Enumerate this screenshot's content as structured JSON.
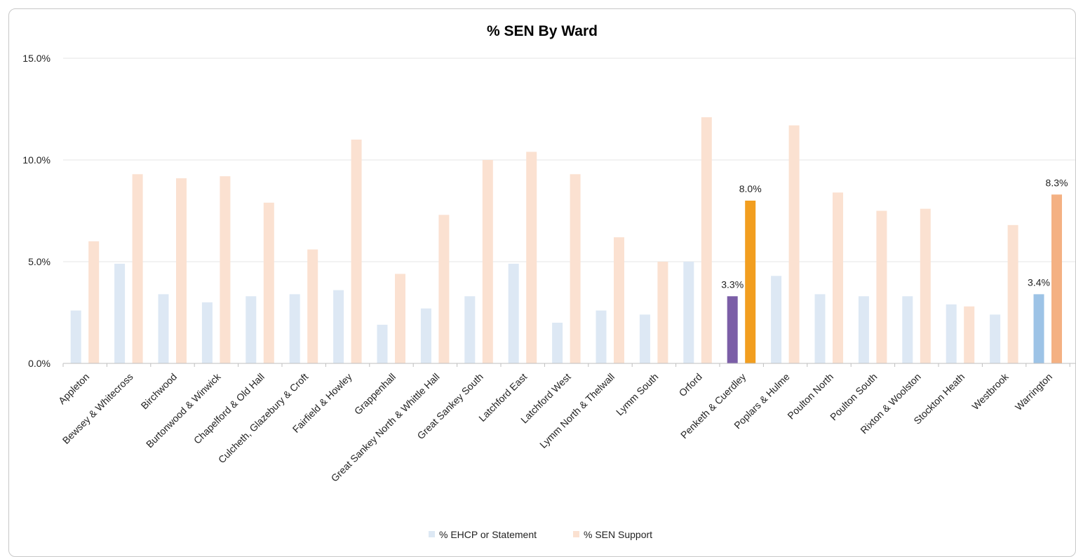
{
  "chart_data": {
    "type": "bar",
    "title": "% SEN By Ward",
    "xlabel": "",
    "ylabel": "",
    "ylim": [
      0,
      15
    ],
    "yticks": [
      "0.0%",
      "5.0%",
      "10.0%",
      "15.0%"
    ],
    "grid": true,
    "legend_position": "bottom",
    "categories": [
      "Appleton",
      "Bewsey & Whitecross",
      "Birchwood",
      "Burtonwood & Winwick",
      "Chapelford & Old Hall",
      "Culcheth, Glazebury & Croft",
      "Fairfield & Howley",
      "Grappenhall",
      "Great Sankey North & Whittle Hall",
      "Great Sankey South",
      "Latchford East",
      "Latchford West",
      "Lymm North & Thelwall",
      "Lymm South",
      "Orford",
      "Penketh & Cuerdley",
      "Poplars & Hulme",
      "Poulton North",
      "Poulton South",
      "Rixton & Woolston",
      "Stockton Heath",
      "Westbrook",
      "Warrington"
    ],
    "series": [
      {
        "name": "% EHCP or Statement",
        "color": "#dde8f4",
        "values": [
          2.6,
          4.9,
          3.4,
          3.0,
          3.3,
          3.4,
          3.6,
          1.9,
          2.7,
          3.3,
          4.9,
          2.0,
          2.6,
          2.4,
          5.0,
          3.3,
          4.3,
          3.4,
          3.3,
          3.3,
          2.9,
          2.4,
          3.4
        ]
      },
      {
        "name": "% SEN Support",
        "color": "#fbe1d1",
        "values": [
          6.0,
          9.3,
          9.1,
          9.2,
          7.9,
          5.6,
          11.0,
          4.4,
          7.3,
          10.0,
          10.4,
          9.3,
          6.2,
          5.0,
          12.1,
          8.0,
          11.7,
          8.4,
          7.5,
          7.6,
          2.8,
          6.8,
          8.3
        ]
      }
    ],
    "highlights": [
      {
        "category": "Penketh & Cuerdley",
        "series": "% EHCP or Statement",
        "color": "#7b5ea7",
        "label": "3.3%"
      },
      {
        "category": "Penketh & Cuerdley",
        "series": "% SEN Support",
        "color": "#f29e1f",
        "label": "8.0%"
      },
      {
        "category": "Warrington",
        "series": "% EHCP or Statement",
        "color": "#9dc3e6",
        "label": "3.4%"
      },
      {
        "category": "Warrington",
        "series": "% SEN Support",
        "color": "#f4b183",
        "label": "8.3%"
      }
    ]
  }
}
